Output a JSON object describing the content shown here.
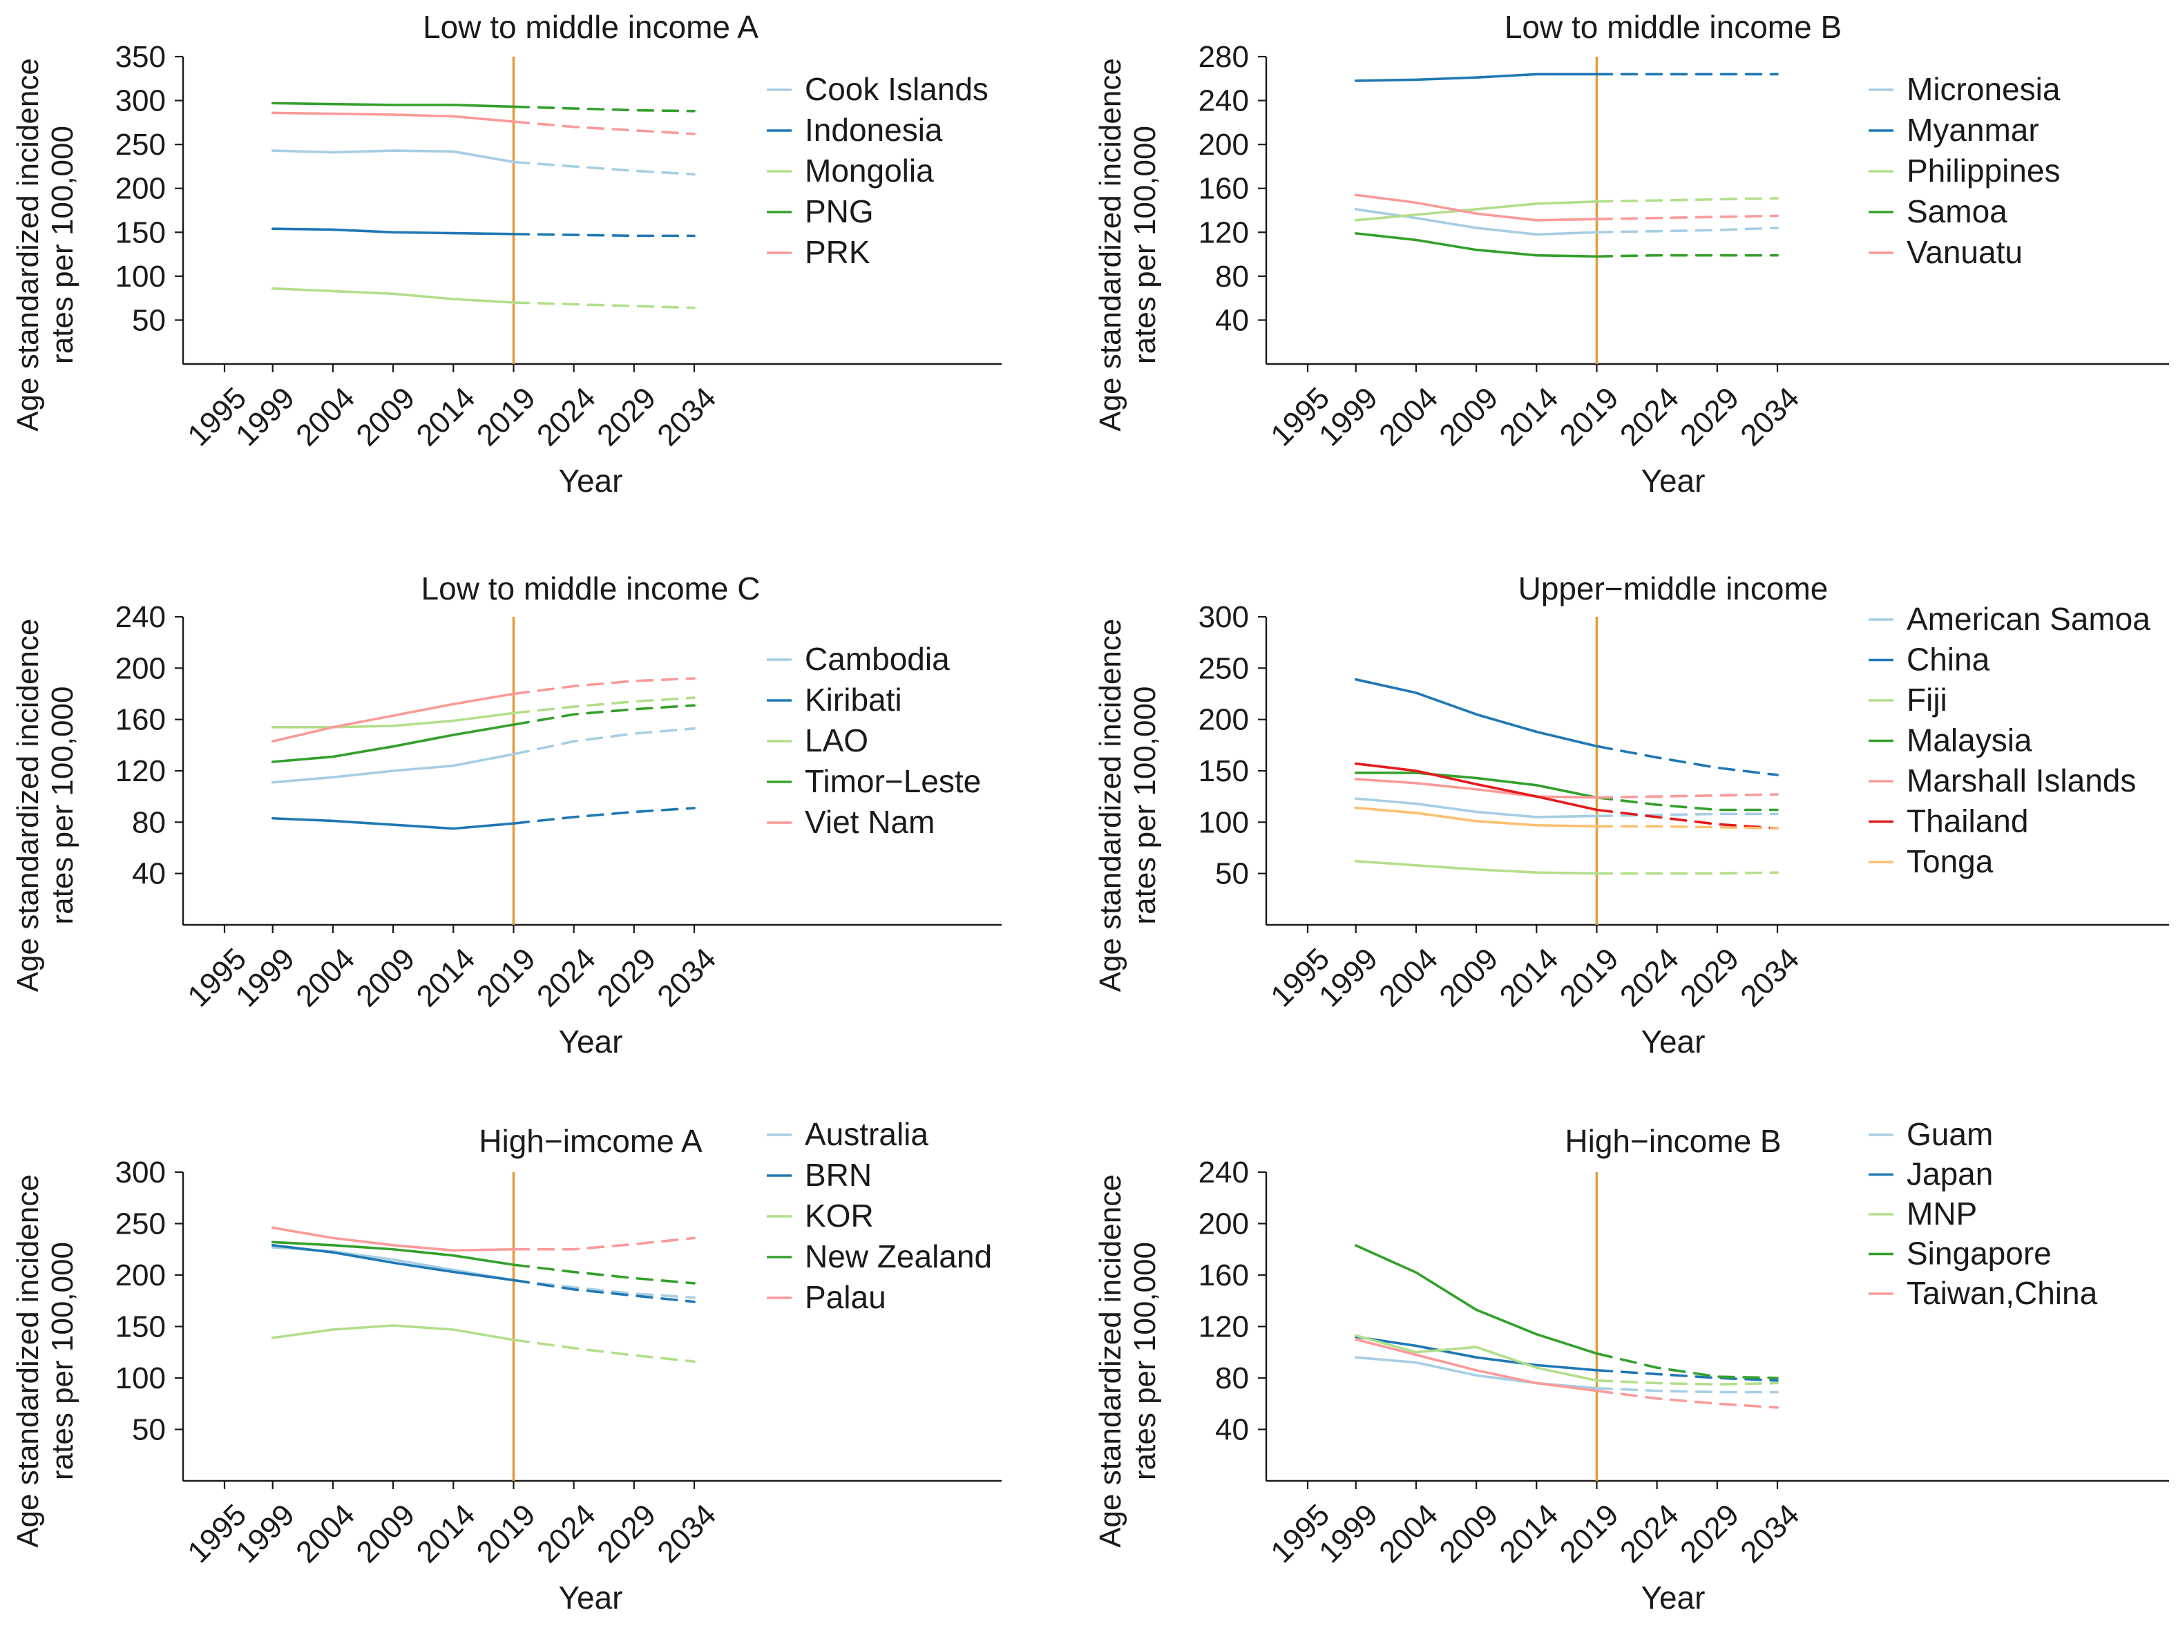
{
  "colors": {
    "light_blue": "#A6CEE3",
    "dark_blue": "#1F78B4",
    "light_green": "#B2DF8A",
    "dark_green": "#33A02C",
    "pink": "#FB9A99",
    "red": "#E31A1C",
    "orange": "#FDBF6F",
    "reference_line": "#E59A3A"
  },
  "chart_data": [
    {
      "type": "line",
      "title": "Low to middle income A",
      "xlabel": "Year",
      "ylabel": "Age standardized incidence rates per 100,000",
      "ylabel_lines": [
        "Age standardized incidence",
        "rates per 100,000"
      ],
      "x_ticks": [
        "1995",
        "1999",
        "2004",
        "2009",
        "2014",
        "2019",
        "2024",
        "2029",
        "2034"
      ],
      "y_ticks": [
        50,
        100,
        150,
        200,
        250,
        300,
        350
      ],
      "ylim": [
        0,
        350
      ],
      "reference_year": 2019,
      "projection_style": "dashed after 2019",
      "grid": false,
      "legend_position": "right",
      "series": [
        {
          "name": "Cook Islands",
          "color": "#A6CEE3",
          "x": [
            "1999",
            "2004",
            "2009",
            "2014",
            "2019",
            "2024",
            "2029",
            "2034"
          ],
          "values": [
            243,
            241,
            243,
            242,
            230,
            225,
            220,
            216
          ]
        },
        {
          "name": "Indonesia",
          "color": "#1F78B4",
          "x": [
            "1999",
            "2004",
            "2009",
            "2014",
            "2019",
            "2024",
            "2029",
            "2034"
          ],
          "values": [
            154,
            153,
            150,
            149,
            148,
            147,
            146,
            146
          ]
        },
        {
          "name": "Mongolia",
          "color": "#B2DF8A",
          "x": [
            "1999",
            "2004",
            "2009",
            "2014",
            "2019",
            "2024",
            "2029",
            "2034"
          ],
          "values": [
            86,
            83,
            80,
            74,
            70,
            68,
            66,
            64
          ]
        },
        {
          "name": "PNG",
          "color": "#33A02C",
          "x": [
            "1999",
            "2004",
            "2009",
            "2014",
            "2019",
            "2024",
            "2029",
            "2034"
          ],
          "values": [
            297,
            296,
            295,
            295,
            293,
            291,
            289,
            288
          ]
        },
        {
          "name": "PRK",
          "color": "#FB9A99",
          "x": [
            "1999",
            "2004",
            "2009",
            "2014",
            "2019",
            "2024",
            "2029",
            "2034"
          ],
          "values": [
            286,
            285,
            284,
            282,
            276,
            270,
            266,
            262
          ]
        }
      ]
    },
    {
      "type": "line",
      "title": "Low to middle income B",
      "xlabel": "Year",
      "ylabel": "Age standardized incidence rates per 100,000",
      "ylabel_lines": [
        "Age standardized incidence",
        "rates per 100,000"
      ],
      "x_ticks": [
        "1995",
        "1999",
        "2004",
        "2009",
        "2014",
        "2019",
        "2024",
        "2029",
        "2034"
      ],
      "y_ticks": [
        40,
        80,
        120,
        160,
        200,
        240,
        280
      ],
      "ylim": [
        0,
        280
      ],
      "reference_year": 2019,
      "projection_style": "dashed after 2019",
      "grid": false,
      "legend_position": "right",
      "series": [
        {
          "name": "Micronesia",
          "color": "#A6CEE3",
          "x": [
            "1999",
            "2004",
            "2009",
            "2014",
            "2019",
            "2024",
            "2029",
            "2034"
          ],
          "values": [
            141,
            133,
            124,
            118,
            120,
            121,
            122,
            124
          ]
        },
        {
          "name": "Myanmar",
          "color": "#1F78B4",
          "x": [
            "1999",
            "2004",
            "2009",
            "2014",
            "2019",
            "2024",
            "2029",
            "2034"
          ],
          "values": [
            258,
            259,
            261,
            264,
            264,
            264,
            264,
            264
          ]
        },
        {
          "name": "Philippines",
          "color": "#B2DF8A",
          "x": [
            "1999",
            "2004",
            "2009",
            "2014",
            "2019",
            "2024",
            "2029",
            "2034"
          ],
          "values": [
            131,
            136,
            141,
            146,
            148,
            149,
            150,
            151
          ]
        },
        {
          "name": "Samoa",
          "color": "#33A02C",
          "x": [
            "1999",
            "2004",
            "2009",
            "2014",
            "2019",
            "2024",
            "2029",
            "2034"
          ],
          "values": [
            119,
            113,
            104,
            99,
            98,
            99,
            99,
            99
          ]
        },
        {
          "name": "Vanuatu",
          "color": "#FB9A99",
          "x": [
            "1999",
            "2004",
            "2009",
            "2014",
            "2019",
            "2024",
            "2029",
            "2034"
          ],
          "values": [
            154,
            147,
            137,
            131,
            132,
            133,
            134,
            135
          ]
        }
      ]
    },
    {
      "type": "line",
      "title": "Low to middle income C",
      "xlabel": "Year",
      "ylabel": "Age standardized incidence rates per 100,000",
      "ylabel_lines": [
        "Age standardized incidence",
        "rates per 100,000"
      ],
      "x_ticks": [
        "1995",
        "1999",
        "2004",
        "2009",
        "2014",
        "2019",
        "2024",
        "2029",
        "2034"
      ],
      "y_ticks": [
        40,
        80,
        120,
        160,
        200,
        240
      ],
      "ylim": [
        0,
        240
      ],
      "reference_year": 2019,
      "projection_style": "dashed after 2019",
      "grid": false,
      "legend_position": "right",
      "series": [
        {
          "name": "Cambodia",
          "color": "#A6CEE3",
          "x": [
            "1999",
            "2004",
            "2009",
            "2014",
            "2019",
            "2024",
            "2029",
            "2034"
          ],
          "values": [
            111,
            115,
            120,
            124,
            133,
            143,
            149,
            153
          ]
        },
        {
          "name": "Kiribati",
          "color": "#1F78B4",
          "x": [
            "1999",
            "2004",
            "2009",
            "2014",
            "2019",
            "2024",
            "2029",
            "2034"
          ],
          "values": [
            83,
            81,
            78,
            75,
            79,
            84,
            88,
            91
          ]
        },
        {
          "name": "LAO",
          "color": "#B2DF8A",
          "x": [
            "1999",
            "2004",
            "2009",
            "2014",
            "2019",
            "2024",
            "2029",
            "2034"
          ],
          "values": [
            154,
            154,
            155,
            159,
            165,
            170,
            174,
            177
          ]
        },
        {
          "name": "Timor−Leste",
          "color": "#33A02C",
          "x": [
            "1999",
            "2004",
            "2009",
            "2014",
            "2019",
            "2024",
            "2029",
            "2034"
          ],
          "values": [
            127,
            131,
            139,
            148,
            156,
            164,
            168,
            171
          ]
        },
        {
          "name": "Viet Nam",
          "color": "#FB9A99",
          "x": [
            "1999",
            "2004",
            "2009",
            "2014",
            "2019",
            "2024",
            "2029",
            "2034"
          ],
          "values": [
            143,
            154,
            163,
            172,
            180,
            186,
            190,
            192
          ]
        }
      ]
    },
    {
      "type": "line",
      "title": "Upper−middle income",
      "xlabel": "Year",
      "ylabel": "Age standardized incidence rates per 100,000",
      "ylabel_lines": [
        "Age standardized incidence",
        "rates per 100,000"
      ],
      "x_ticks": [
        "1995",
        "1999",
        "2004",
        "2009",
        "2014",
        "2019",
        "2024",
        "2029",
        "2034"
      ],
      "y_ticks": [
        50,
        100,
        150,
        200,
        250,
        300
      ],
      "ylim": [
        0,
        300
      ],
      "reference_year": 2019,
      "projection_style": "dashed after 2019",
      "grid": false,
      "legend_position": "right",
      "series": [
        {
          "name": "American Samoa",
          "color": "#A6CEE3",
          "x": [
            "1999",
            "2004",
            "2009",
            "2014",
            "2019",
            "2024",
            "2029",
            "2034"
          ],
          "values": [
            123,
            118,
            110,
            105,
            106,
            107,
            108,
            108
          ]
        },
        {
          "name": "China",
          "color": "#1F78B4",
          "x": [
            "1999",
            "2004",
            "2009",
            "2014",
            "2019",
            "2024",
            "2029",
            "2034"
          ],
          "values": [
            239,
            226,
            205,
            188,
            174,
            163,
            153,
            146
          ]
        },
        {
          "name": "Fiji",
          "color": "#B2DF8A",
          "x": [
            "1999",
            "2004",
            "2009",
            "2014",
            "2019",
            "2024",
            "2029",
            "2034"
          ],
          "values": [
            62,
            58,
            54,
            51,
            50,
            50,
            50,
            51
          ]
        },
        {
          "name": "Malaysia",
          "color": "#33A02C",
          "x": [
            "1999",
            "2004",
            "2009",
            "2014",
            "2019",
            "2024",
            "2029",
            "2034"
          ],
          "values": [
            148,
            148,
            143,
            136,
            124,
            117,
            112,
            112
          ]
        },
        {
          "name": "Marshall Islands",
          "color": "#FB9A99",
          "x": [
            "1999",
            "2004",
            "2009",
            "2014",
            "2019",
            "2024",
            "2029",
            "2034"
          ],
          "values": [
            142,
            138,
            132,
            125,
            124,
            125,
            126,
            127
          ]
        },
        {
          "name": "Thailand",
          "color": "#E31A1C",
          "x": [
            "1999",
            "2004",
            "2009",
            "2014",
            "2019",
            "2024",
            "2029",
            "2034"
          ],
          "values": [
            157,
            150,
            137,
            125,
            112,
            105,
            98,
            94
          ]
        },
        {
          "name": "Tonga",
          "color": "#FDBF6F",
          "x": [
            "1999",
            "2004",
            "2009",
            "2014",
            "2019",
            "2024",
            "2029",
            "2034"
          ],
          "values": [
            114,
            109,
            101,
            97,
            96,
            96,
            95,
            94
          ]
        }
      ]
    },
    {
      "type": "line",
      "title": "High−imcome A",
      "xlabel": "Year",
      "ylabel": "Age standardized incidence rates per 100,000",
      "ylabel_lines": [
        "Age standardized incidence",
        "rates per 100,000"
      ],
      "x_ticks": [
        "1995",
        "1999",
        "2004",
        "2009",
        "2014",
        "2019",
        "2024",
        "2029",
        "2034"
      ],
      "y_ticks": [
        50,
        100,
        150,
        200,
        250,
        300
      ],
      "ylim": [
        0,
        300
      ],
      "reference_year": 2019,
      "projection_style": "dashed after 2019",
      "grid": false,
      "legend_position": "right",
      "series": [
        {
          "name": "Australia",
          "color": "#A6CEE3",
          "x": [
            "1999",
            "2004",
            "2009",
            "2014",
            "2019",
            "2024",
            "2029",
            "2034"
          ],
          "values": [
            227,
            223,
            215,
            205,
            195,
            188,
            182,
            178
          ]
        },
        {
          "name": "BRN",
          "color": "#1F78B4",
          "x": [
            "1999",
            "2004",
            "2009",
            "2014",
            "2019",
            "2024",
            "2029",
            "2034"
          ],
          "values": [
            229,
            222,
            212,
            203,
            195,
            186,
            180,
            174
          ]
        },
        {
          "name": "KOR",
          "color": "#B2DF8A",
          "x": [
            "1999",
            "2004",
            "2009",
            "2014",
            "2019",
            "2024",
            "2029",
            "2034"
          ],
          "values": [
            139,
            147,
            151,
            147,
            137,
            129,
            122,
            116
          ]
        },
        {
          "name": "New Zealand",
          "color": "#33A02C",
          "x": [
            "1999",
            "2004",
            "2009",
            "2014",
            "2019",
            "2024",
            "2029",
            "2034"
          ],
          "values": [
            232,
            229,
            225,
            219,
            210,
            203,
            197,
            192
          ]
        },
        {
          "name": "Palau",
          "color": "#FB9A99",
          "x": [
            "1999",
            "2004",
            "2009",
            "2014",
            "2019",
            "2024",
            "2029",
            "2034"
          ],
          "values": [
            246,
            236,
            229,
            224,
            225,
            225,
            230,
            236
          ]
        }
      ]
    },
    {
      "type": "line",
      "title": "High−income B",
      "xlabel": "Year",
      "ylabel": "Age standardized incidence rates per 100,000",
      "ylabel_lines": [
        "Age standardized incidence",
        "rates per 100,000"
      ],
      "x_ticks": [
        "1995",
        "1999",
        "2004",
        "2009",
        "2014",
        "2019",
        "2024",
        "2029",
        "2034"
      ],
      "y_ticks": [
        40,
        80,
        120,
        160,
        200,
        240
      ],
      "ylim": [
        0,
        240
      ],
      "reference_year": 2019,
      "projection_style": "dashed after 2019",
      "grid": false,
      "legend_position": "right",
      "series": [
        {
          "name": "Guam",
          "color": "#A6CEE3",
          "x": [
            "1999",
            "2004",
            "2009",
            "2014",
            "2019",
            "2024",
            "2029",
            "2034"
          ],
          "values": [
            96,
            92,
            82,
            76,
            72,
            70,
            69,
            69
          ]
        },
        {
          "name": "Japan",
          "color": "#1F78B4",
          "x": [
            "1999",
            "2004",
            "2009",
            "2014",
            "2019",
            "2024",
            "2029",
            "2034"
          ],
          "values": [
            112,
            105,
            96,
            90,
            86,
            83,
            80,
            78
          ]
        },
        {
          "name": "MNP",
          "color": "#B2DF8A",
          "x": [
            "1999",
            "2004",
            "2009",
            "2014",
            "2019",
            "2024",
            "2029",
            "2034"
          ],
          "values": [
            113,
            100,
            104,
            88,
            78,
            76,
            75,
            76
          ]
        },
        {
          "name": "Singapore",
          "color": "#33A02C",
          "x": [
            "1999",
            "2004",
            "2009",
            "2014",
            "2019",
            "2024",
            "2029",
            "2034"
          ],
          "values": [
            183,
            162,
            133,
            114,
            99,
            88,
            81,
            80
          ]
        },
        {
          "name": "Taiwan,China",
          "color": "#FB9A99",
          "x": [
            "1999",
            "2004",
            "2009",
            "2014",
            "2019",
            "2024",
            "2029",
            "2034"
          ],
          "values": [
            110,
            98,
            86,
            76,
            70,
            64,
            60,
            57
          ]
        }
      ]
    }
  ]
}
